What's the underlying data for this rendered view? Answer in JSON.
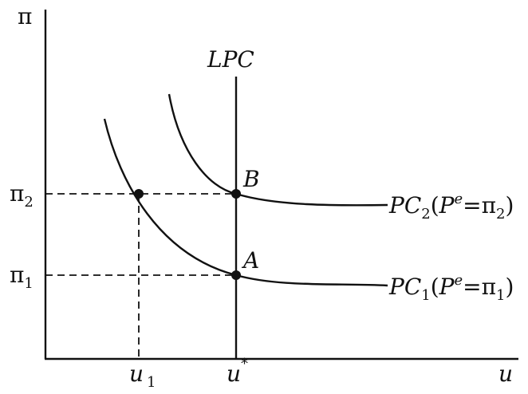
{
  "diagram": {
    "y_axis_label": "π",
    "x_axis_label": "u",
    "lpc_label": "LPC",
    "point_b_label": "B",
    "point_a_label": "A",
    "y_tick_pi2": {
      "base": "π",
      "sub": "2"
    },
    "y_tick_pi1": {
      "base": "π",
      "sub": "1"
    },
    "x_tick_u1": {
      "base": "u",
      "sub": "1"
    },
    "x_tick_ustar": {
      "base": "u",
      "sup": "*"
    },
    "pc2_label": {
      "base": "PC",
      "sub": "2",
      "paren_open": "(",
      "pe_base": "P",
      "pe_sup": "e",
      "eq": "=",
      "pi_base": "π",
      "pi_sub": "2",
      "paren_close": ")"
    },
    "pc1_label": {
      "base": "PC",
      "sub": "1",
      "paren_open": "(",
      "pe_base": "P",
      "pe_sup": "e",
      "eq": "=",
      "pi_base": "π",
      "pi_sub": "1",
      "paren_close": ")"
    }
  }
}
